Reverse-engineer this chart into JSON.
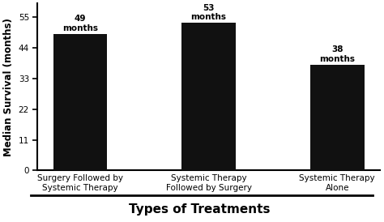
{
  "categories": [
    "Surgery Followed by\nSystemic Therapy",
    "Systemic Therapy\nFollowed by Surgery",
    "Systemic Therapy\nAlone"
  ],
  "values": [
    49,
    53,
    38
  ],
  "bar_labels": [
    "49\nmonths",
    "53\nmonths",
    "38\nmonths"
  ],
  "bar_color": "#111111",
  "ylabel": "Median Survival (months)",
  "xlabel": "Types of Treatments",
  "ylim": [
    0,
    60
  ],
  "yticks": [
    0,
    11,
    22,
    33,
    44,
    55
  ],
  "background_color": "#ffffff",
  "xlabel_fontsize": 11,
  "ylabel_fontsize": 8.5,
  "bar_label_fontsize": 7.5,
  "tick_label_fontsize": 7.5,
  "bar_width": 0.42
}
